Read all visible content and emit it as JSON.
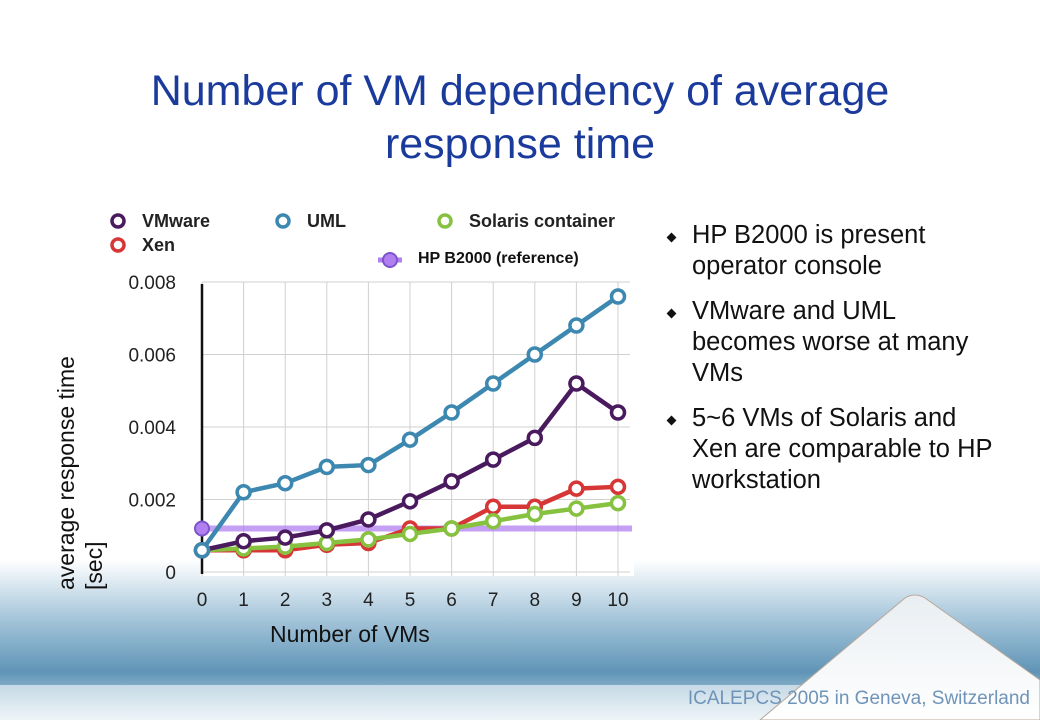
{
  "slide": {
    "title_lines": [
      "Number of VM dependency of average",
      "response time"
    ],
    "bullets": [
      "HP B2000 is present operator console",
      "VMware and UML becomes worse at many VMs",
      "5~6 VMs of Solaris and Xen are comparable to HP workstation"
    ],
    "footer": "ICALEPCS 2005 in Geneva, Switzerland"
  },
  "chart_data": {
    "type": "line",
    "x": [
      0,
      1,
      2,
      3,
      4,
      5,
      6,
      7,
      8,
      9,
      10
    ],
    "xlabel": "Number of VMs",
    "ylabel_lines": [
      "average response time",
      "[sec]"
    ],
    "ylim": [
      0,
      0.008
    ],
    "yticks": [
      "0",
      "0.002",
      "0.004",
      "0.006",
      "0.008"
    ],
    "xticks": [
      "0",
      "1",
      "2",
      "3",
      "4",
      "5",
      "6",
      "7",
      "8",
      "9",
      "10"
    ],
    "grid": true,
    "legend_position": "top",
    "series": [
      {
        "name": "VMware",
        "color": "#4a1a5e",
        "values": [
          0.0006,
          0.00085,
          0.00095,
          0.00115,
          0.00145,
          0.00195,
          0.0025,
          0.0031,
          0.0037,
          0.0052,
          0.0044
        ]
      },
      {
        "name": "UML",
        "color": "#3d88b0",
        "values": [
          0.0006,
          0.0022,
          0.00245,
          0.0029,
          0.00295,
          0.00365,
          0.0044,
          0.0052,
          0.006,
          0.0068,
          0.0076
        ]
      },
      {
        "name": "Solaris container",
        "color": "#86c240",
        "values": [
          0.0006,
          0.00065,
          0.0007,
          0.0008,
          0.0009,
          0.00105,
          0.0012,
          0.0014,
          0.0016,
          0.00175,
          0.0019
        ]
      },
      {
        "name": "Xen",
        "color": "#d63636",
        "values": [
          0.0006,
          0.0006,
          0.0006,
          0.00075,
          0.0008,
          0.0012,
          0.0012,
          0.0018,
          0.0018,
          0.0023,
          0.00235
        ]
      }
    ],
    "reference": {
      "name": "HP B2000 (reference)",
      "value": 0.0012,
      "color": "#b27ff0"
    }
  }
}
